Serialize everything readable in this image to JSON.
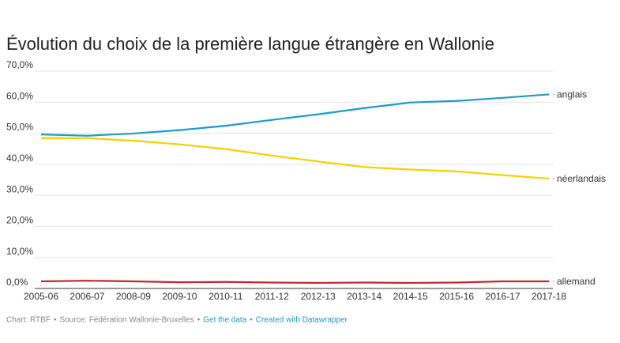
{
  "chart_data": {
    "type": "line",
    "title": "Évolution du choix de la première langue étrangère en Wallonie",
    "categories": [
      "2005-06",
      "2006-07",
      "2008-09",
      "2009-10",
      "2010-11",
      "2011-12",
      "2012-13",
      "2013-14",
      "2014-15",
      "2015-16",
      "2016-17",
      "2017-18"
    ],
    "series": [
      {
        "name": "anglais",
        "color": "#1d9bc9",
        "values": [
          49.6,
          49.2,
          49.9,
          51.0,
          52.4,
          54.3,
          56.1,
          58.1,
          59.9,
          60.4,
          61.4,
          62.5
        ]
      },
      {
        "name": "néerlandais",
        "color": "#f7d000",
        "values": [
          48.4,
          48.4,
          47.6,
          46.4,
          44.9,
          42.8,
          40.9,
          39.1,
          38.3,
          37.7,
          36.5,
          35.4
        ]
      },
      {
        "name": "allemand",
        "color": "#c0282e",
        "values": [
          2.3,
          2.5,
          2.3,
          2.0,
          2.1,
          1.9,
          1.8,
          1.9,
          1.8,
          1.9,
          2.3,
          2.3
        ]
      }
    ],
    "ylim": [
      0,
      70
    ],
    "yticks": [
      {
        "value": 0,
        "label": "0,0%"
      },
      {
        "value": 10,
        "label": "10,0%"
      },
      {
        "value": 20,
        "label": "20,0%"
      },
      {
        "value": 30,
        "label": "30,0%"
      },
      {
        "value": 40,
        "label": "40,0%"
      },
      {
        "value": 50,
        "label": "50,0%"
      },
      {
        "value": 60,
        "label": "60,0%"
      },
      {
        "value": 70,
        "label": "70,0%"
      }
    ],
    "grid": true
  },
  "footer": {
    "credit": "Chart: RTBF",
    "source": "Source: Fédération Wallonie-Bruxelles",
    "separator": "•",
    "data_link": "Get the data",
    "made_with": "Created with Datawrapper"
  }
}
